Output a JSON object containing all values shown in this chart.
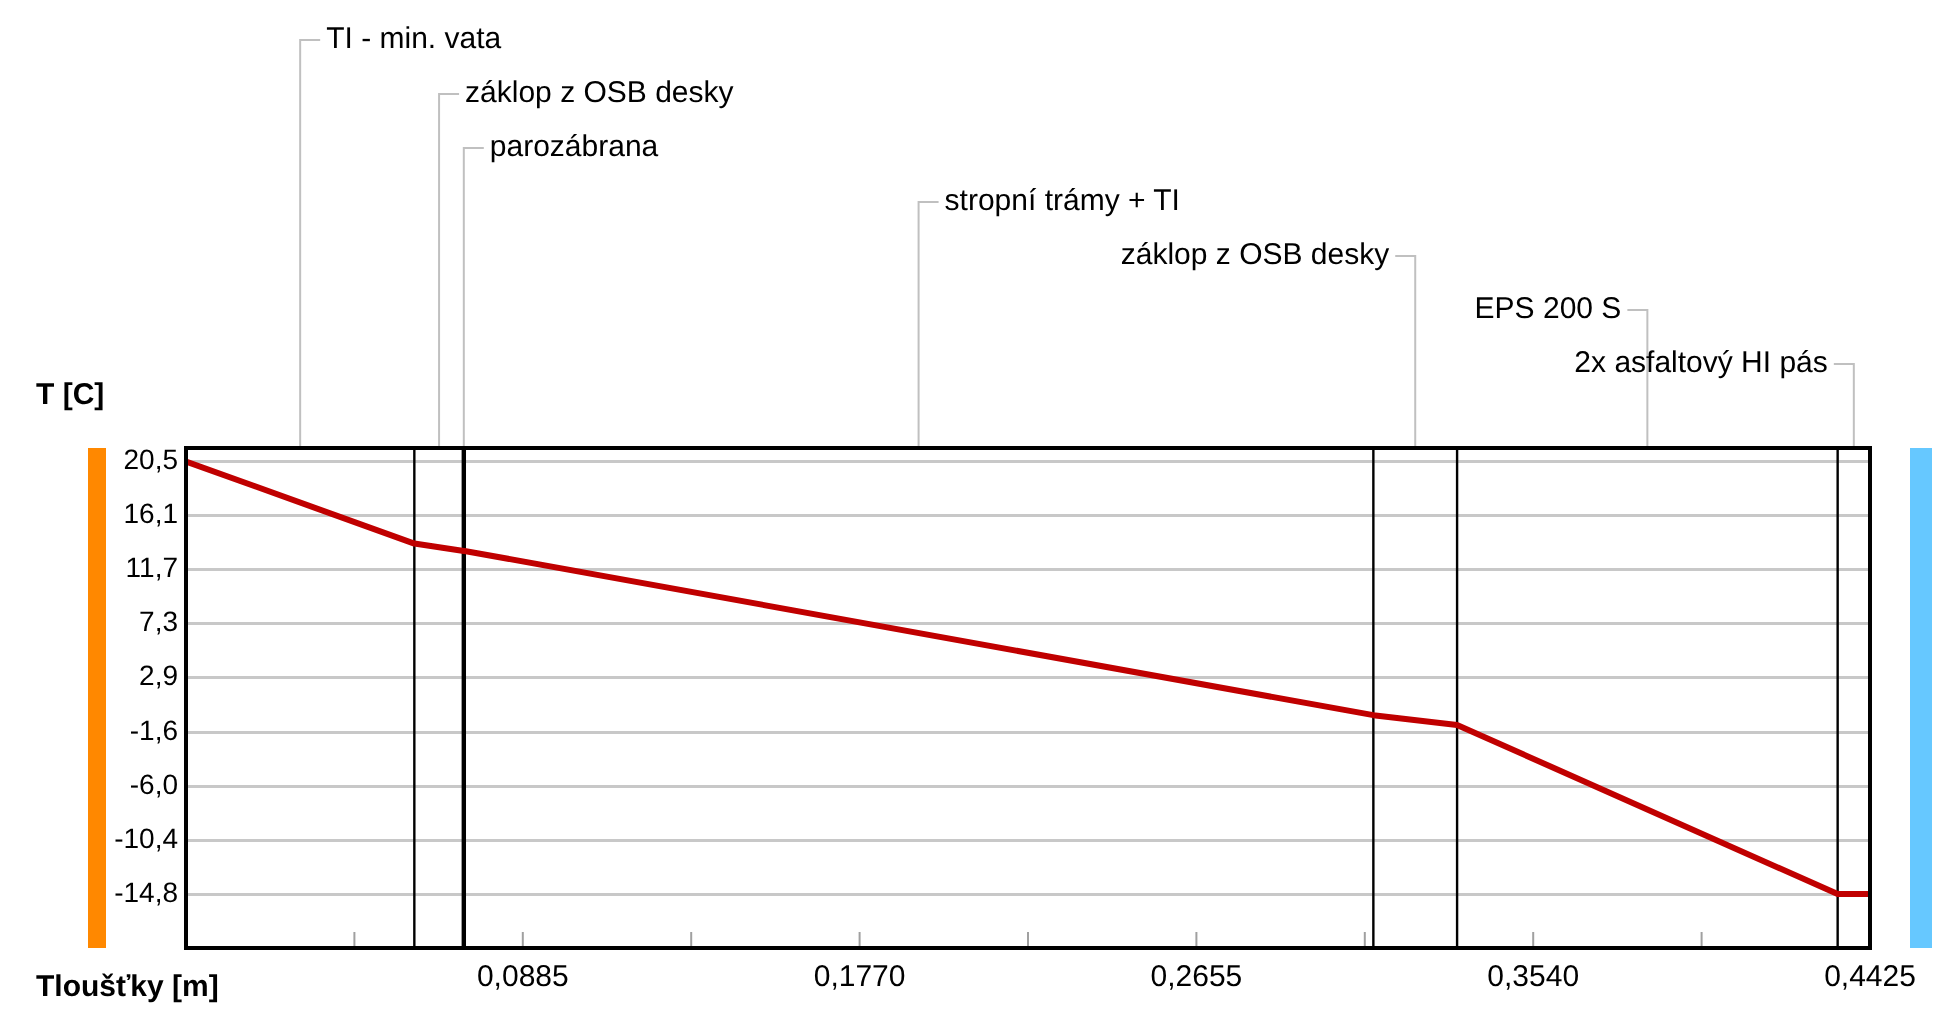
{
  "chart_data": {
    "type": "line",
    "xlabel": "Tloušťky [m]",
    "ylabel": "T [C]",
    "x": [
      0,
      0.06,
      0.073,
      0.0732,
      0.312,
      0.334,
      0.434,
      0.4425
    ],
    "series": [
      {
        "color": "#c00000",
        "values": [
          20.5,
          13.8,
          13.2,
          13.2,
          -0.2,
          -1.0,
          -14.8,
          -14.8
        ]
      }
    ],
    "xlim": [
      0,
      0.4425
    ],
    "ylim": [
      -19.2,
      21.6
    ],
    "xticks": [
      {
        "value": 0,
        "label": null
      },
      {
        "value": 0.04425,
        "label": null
      },
      {
        "value": 0.0885,
        "label": "0,0885"
      },
      {
        "value": 0.13275,
        "label": null
      },
      {
        "value": 0.177,
        "label": "0,1770"
      },
      {
        "value": 0.22125,
        "label": null
      },
      {
        "value": 0.2655,
        "label": "0,2655"
      },
      {
        "value": 0.30975,
        "label": null
      },
      {
        "value": 0.354,
        "label": "0,3540"
      },
      {
        "value": 0.39825,
        "label": null
      },
      {
        "value": 0.4425,
        "label": "0,4425"
      }
    ],
    "yticks": [
      {
        "value": 20.5,
        "label": "20,5"
      },
      {
        "value": 16.1,
        "label": "16,1"
      },
      {
        "value": 11.7,
        "label": "11,7"
      },
      {
        "value": 7.3,
        "label": "7,3"
      },
      {
        "value": 2.9,
        "label": "2,9"
      },
      {
        "value": -1.6,
        "label": "-1,6"
      },
      {
        "value": -6.0,
        "label": "-6,0"
      },
      {
        "value": -10.4,
        "label": "-10,4"
      },
      {
        "value": -14.8,
        "label": "-14,8"
      }
    ],
    "grid": "y",
    "legend": false,
    "marker": "none",
    "line_style": "solid",
    "ref_lines": [
      {
        "axis": "x",
        "value": 0.06
      },
      {
        "axis": "x",
        "value": 0.073,
        "label": "parozábrana"
      },
      {
        "axis": "x",
        "value": 0.312
      },
      {
        "axis": "x",
        "value": 0.334
      },
      {
        "axis": "x",
        "value": 0.434
      }
    ],
    "annotations": [
      "TI - min. vata",
      "záklop z OSB desky",
      "stropní trámy + TI",
      "záklop z OSB desky",
      "EPS 200 S",
      "2x asfaltový HI pás"
    ]
  }
}
